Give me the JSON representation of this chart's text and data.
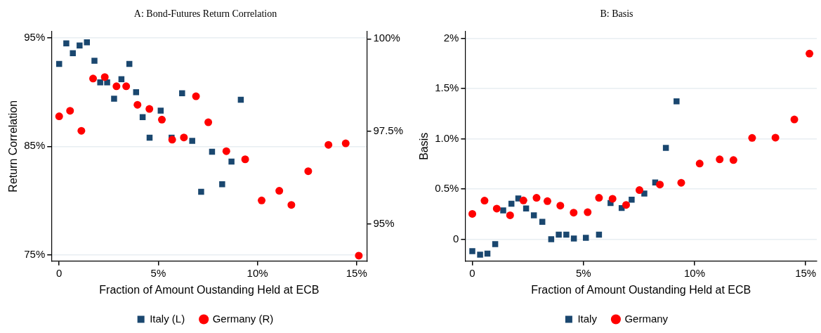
{
  "chart_data": [
    {
      "type": "scatter",
      "title": "A: Bond-Futures Return Correlation",
      "xlabel": "Fraction of Amount Oustanding Held at ECB",
      "ylabel": "Return Correlation",
      "xlim": [
        -0.39,
        15.52
      ],
      "xticks": [
        {
          "value": 0,
          "label": "0"
        },
        {
          "value": 5,
          "label": "5%"
        },
        {
          "value": 10,
          "label": "10%"
        },
        {
          "value": 15,
          "label": "15%"
        }
      ],
      "ylim": [
        74.4,
        95.6
      ],
      "yticks": [
        {
          "value": 75,
          "label": "75%"
        },
        {
          "value": 85,
          "label": "85%"
        },
        {
          "value": 95,
          "label": "95%"
        }
      ],
      "y2lim": [
        94.0,
        100.2
      ],
      "y2ticks": [
        {
          "value": 95,
          "label": "95%"
        },
        {
          "value": 97.5,
          "label": "97.5%"
        },
        {
          "value": 100,
          "label": "100%"
        }
      ],
      "grid": "y",
      "legend": "bottom",
      "series": [
        {
          "name": "Italy (L)",
          "color": "#1a476f",
          "marker": "square",
          "x": [
            0,
            0.36,
            0.69,
            1.03,
            1.4,
            1.78,
            2.07,
            2.42,
            2.77,
            3.14,
            3.54,
            3.88,
            4.21,
            4.56,
            5.12,
            5.67,
            6.2,
            6.71,
            7.16,
            7.71,
            8.22,
            8.69,
            9.16
          ],
          "values": [
            92.6,
            94.5,
            93.6,
            94.3,
            94.6,
            92.9,
            90.9,
            90.9,
            89.4,
            91.2,
            92.6,
            90.0,
            87.7,
            85.8,
            88.3,
            85.8,
            89.9,
            85.5,
            80.8,
            84.5,
            81.5,
            83.6,
            89.3
          ]
        },
        {
          "name": "Germany (R)",
          "color": "#ff0000",
          "marker": "circle",
          "axis": "y2",
          "x": [
            0,
            0.55,
            1.12,
            1.71,
            2.3,
            2.89,
            3.38,
            3.95,
            4.55,
            5.18,
            5.7,
            6.29,
            6.9,
            7.52,
            8.43,
            9.38,
            10.21,
            11.1,
            11.71,
            12.56,
            13.58,
            14.45,
            15.11
          ],
          "values": [
            97.91,
            98.06,
            97.52,
            98.93,
            98.97,
            98.72,
            98.72,
            98.22,
            98.11,
            97.82,
            97.28,
            97.34,
            98.45,
            97.75,
            96.97,
            96.75,
            95.64,
            95.9,
            95.52,
            96.43,
            97.14,
            97.18,
            94.15
          ]
        }
      ]
    },
    {
      "type": "scatter",
      "title": "B: Basis",
      "xlabel": "Fraction of Amount Oustanding Held at ECB",
      "ylabel": "Basis",
      "xlim": [
        -0.32,
        15.5
      ],
      "xticks": [
        {
          "value": 0,
          "label": "0"
        },
        {
          "value": 5,
          "label": "5%"
        },
        {
          "value": 10,
          "label": "10%"
        },
        {
          "value": 15,
          "label": "15%"
        }
      ],
      "ylim": [
        -0.22,
        2.07
      ],
      "yticks": [
        {
          "value": 0,
          "label": "0"
        },
        {
          "value": 0.5,
          "label": "0.5%"
        },
        {
          "value": 1,
          "label": "1.0%"
        },
        {
          "value": 1.5,
          "label": "1.5%"
        },
        {
          "value": 2,
          "label": "2%"
        }
      ],
      "grid": "y",
      "legend": "bottom",
      "series": [
        {
          "name": "Italy",
          "color": "#1a476f",
          "marker": "square",
          "x": [
            0,
            0.35,
            0.68,
            1.03,
            1.39,
            1.76,
            2.07,
            2.42,
            2.77,
            3.15,
            3.55,
            3.89,
            4.23,
            4.57,
            5.11,
            5.7,
            6.22,
            6.72,
            7.17,
            7.74,
            8.23,
            8.71,
            9.19
          ],
          "values": [
            -0.12,
            -0.155,
            -0.145,
            -0.05,
            0.287,
            0.353,
            0.405,
            0.306,
            0.238,
            0.172,
            0.0,
            0.045,
            0.045,
            0.007,
            0.014,
            0.045,
            0.36,
            0.31,
            0.393,
            0.454,
            0.565,
            0.91,
            1.374
          ]
        },
        {
          "name": "Germany",
          "color": "#ff0000",
          "marker": "circle",
          "x": [
            0,
            0.55,
            1.1,
            1.7,
            2.3,
            2.89,
            3.38,
            3.96,
            4.56,
            5.19,
            5.7,
            6.31,
            6.92,
            7.52,
            8.44,
            9.4,
            10.23,
            11.13,
            11.75,
            12.59,
            13.64,
            14.49,
            15.17
          ],
          "values": [
            0.252,
            0.384,
            0.304,
            0.238,
            0.386,
            0.412,
            0.379,
            0.334,
            0.264,
            0.268,
            0.412,
            0.402,
            0.341,
            0.489,
            0.544,
            0.562,
            0.753,
            0.795,
            0.788,
            1.009,
            1.012,
            1.193,
            1.849
          ]
        }
      ]
    }
  ]
}
